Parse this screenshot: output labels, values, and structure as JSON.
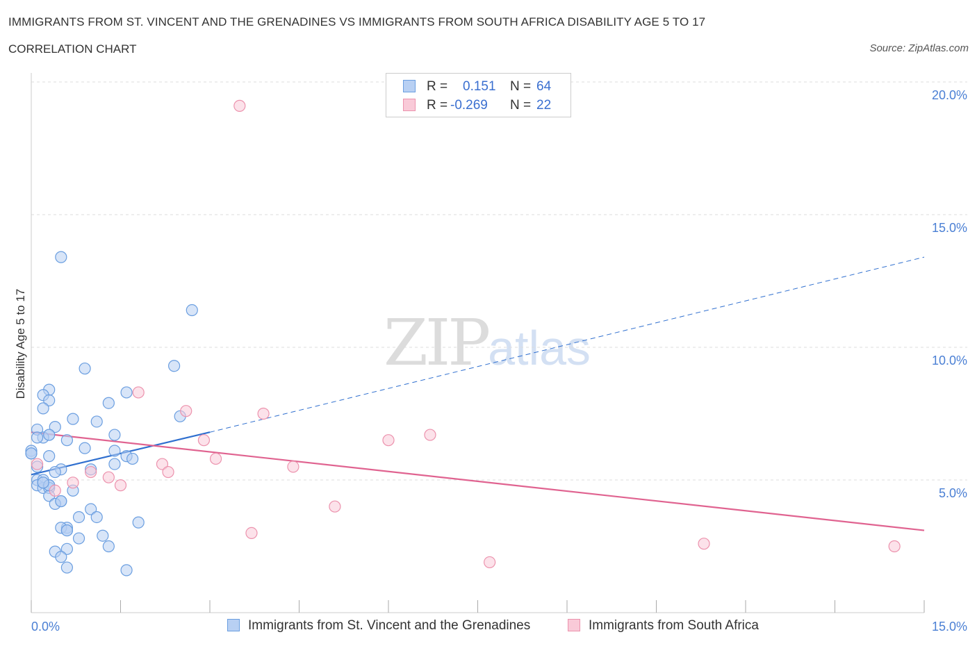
{
  "header": {
    "title": "IMMIGRANTS FROM ST. VINCENT AND THE GRENADINES VS IMMIGRANTS FROM SOUTH AFRICA DISABILITY AGE 5 TO 17",
    "subtitle": "CORRELATION CHART",
    "source": "Source: ZipAtlas.com"
  },
  "watermark": {
    "zip": "ZIP",
    "atlas": "atlas"
  },
  "legend": {
    "rows": [
      {
        "r_label": "R =",
        "r_value": "0.151",
        "n_label": "N =",
        "n_value": "64",
        "color": "#a9c6f0"
      },
      {
        "r_label": "R =",
        "r_value": "-0.269",
        "n_label": "N =",
        "n_value": "22",
        "color": "#f7bccd"
      }
    ]
  },
  "bottom_legend": [
    {
      "label": "Immigrants from St. Vincent and the Grenadines",
      "color": "#a9c6f0"
    },
    {
      "label": "Immigrants from South Africa",
      "color": "#f7bccd"
    }
  ],
  "chart_data": {
    "type": "scatter",
    "title": "IMMIGRANTS FROM ST. VINCENT AND THE GRENADINES VS IMMIGRANTS FROM SOUTH AFRICA DISABILITY AGE 5 TO 17",
    "xlabel": "",
    "ylabel": "Disability Age 5 to 17",
    "xlim": [
      0,
      15
    ],
    "ylim": [
      0,
      20
    ],
    "x_tick_labels": [
      "0.0%",
      "15.0%"
    ],
    "y_ticks": [
      5,
      10,
      15,
      20
    ],
    "y_tick_labels": [
      "5.0%",
      "10.0%",
      "15.0%",
      "20.0%"
    ],
    "series": [
      {
        "name": "Immigrants from St. Vincent and the Grenadines",
        "color": "#6a9ee0",
        "fill": "#b8d0f3",
        "trend_color": "#2f6fcf",
        "trend": {
          "x0": 0,
          "y0": 5.2,
          "x_solid_end": 3.0,
          "y_solid_end": 6.8,
          "x1": 15,
          "y1": 13.4
        },
        "points": [
          [
            0.5,
            13.4
          ],
          [
            2.7,
            11.4
          ],
          [
            2.4,
            9.3
          ],
          [
            0.9,
            9.2
          ],
          [
            1.6,
            8.3
          ],
          [
            0.3,
            8.4
          ],
          [
            0.2,
            8.2
          ],
          [
            0.3,
            8.0
          ],
          [
            1.3,
            7.9
          ],
          [
            0.2,
            7.7
          ],
          [
            0.4,
            7.0
          ],
          [
            2.5,
            7.4
          ],
          [
            0.7,
            7.3
          ],
          [
            1.1,
            7.2
          ],
          [
            0.1,
            6.9
          ],
          [
            0.3,
            6.7
          ],
          [
            0.2,
            6.6
          ],
          [
            0.1,
            6.6
          ],
          [
            0.6,
            6.5
          ],
          [
            1.4,
            6.7
          ],
          [
            0.9,
            6.2
          ],
          [
            1.4,
            6.1
          ],
          [
            0.0,
            6.1
          ],
          [
            0.0,
            6.0
          ],
          [
            0.3,
            5.9
          ],
          [
            1.6,
            5.9
          ],
          [
            1.7,
            5.8
          ],
          [
            1.4,
            5.6
          ],
          [
            0.5,
            5.4
          ],
          [
            1.0,
            5.4
          ],
          [
            0.4,
            5.3
          ],
          [
            0.1,
            5.0
          ],
          [
            0.2,
            5.0
          ],
          [
            0.1,
            4.8
          ],
          [
            0.3,
            4.8
          ],
          [
            0.2,
            4.7
          ],
          [
            0.3,
            4.7
          ],
          [
            0.7,
            4.6
          ],
          [
            0.3,
            4.4
          ],
          [
            0.5,
            4.2
          ],
          [
            0.4,
            4.1
          ],
          [
            1.0,
            3.9
          ],
          [
            0.8,
            3.6
          ],
          [
            1.1,
            3.6
          ],
          [
            1.8,
            3.4
          ],
          [
            0.6,
            3.2
          ],
          [
            0.5,
            3.2
          ],
          [
            0.6,
            3.1
          ],
          [
            1.2,
            2.9
          ],
          [
            0.8,
            2.8
          ],
          [
            1.3,
            2.5
          ],
          [
            0.6,
            2.4
          ],
          [
            0.4,
            2.3
          ],
          [
            0.5,
            2.1
          ],
          [
            0.6,
            1.7
          ],
          [
            1.6,
            1.6
          ],
          [
            0.0,
            6.0
          ],
          [
            0.2,
            4.9
          ],
          [
            0.3,
            4.8
          ],
          [
            0.1,
            5.5
          ],
          [
            0.5,
            4.2
          ],
          [
            0.2,
            4.9
          ],
          [
            0.6,
            3.1
          ],
          [
            0.3,
            6.7
          ]
        ]
      },
      {
        "name": "Immigrants from South Africa",
        "color": "#ec92ad",
        "fill": "#f9cad8",
        "trend_color": "#e06390",
        "trend": {
          "x0": 0,
          "y0": 6.8,
          "x1": 15,
          "y1": 3.1
        },
        "points": [
          [
            3.5,
            19.1
          ],
          [
            1.8,
            8.3
          ],
          [
            2.6,
            7.6
          ],
          [
            3.9,
            7.5
          ],
          [
            6.7,
            6.7
          ],
          [
            6.0,
            6.5
          ],
          [
            2.9,
            6.5
          ],
          [
            3.1,
            5.8
          ],
          [
            1.3,
            5.1
          ],
          [
            0.1,
            5.6
          ],
          [
            2.2,
            5.6
          ],
          [
            4.4,
            5.5
          ],
          [
            2.3,
            5.3
          ],
          [
            1.0,
            5.3
          ],
          [
            0.7,
            4.9
          ],
          [
            1.5,
            4.8
          ],
          [
            0.4,
            4.6
          ],
          [
            5.1,
            4.0
          ],
          [
            3.7,
            3.0
          ],
          [
            11.3,
            2.6
          ],
          [
            14.5,
            2.5
          ],
          [
            7.7,
            1.9
          ]
        ]
      }
    ]
  }
}
